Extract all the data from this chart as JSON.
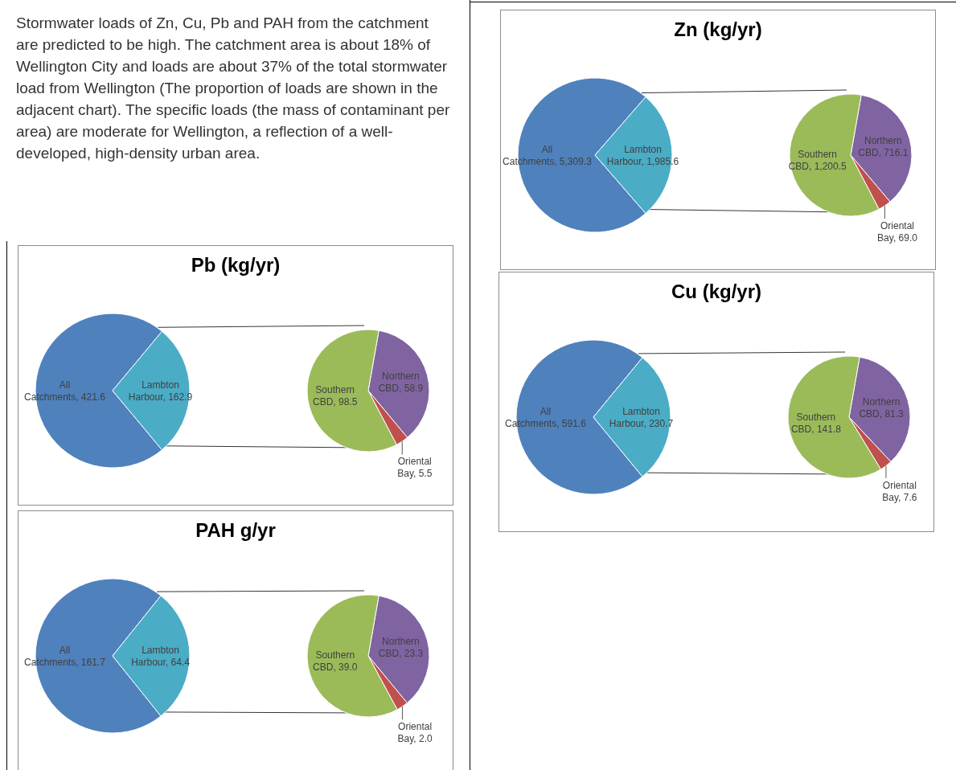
{
  "chart_data": [
    {
      "type": "other",
      "annotations": [
        "Stormwater loads of Zn, Cu, Pb and PAH from the catchment are predicted to be high. The catchment area is about 18% of Wellington City and loads are about 37% of the total stormwater load from Wellington (The proportion of loads are shown in the adjacent chart). The specific loads (the mass of contaminant per area) are moderate for Wellington, a reflection of a well-developed, high-density urban area."
      ]
    },
    {
      "type": "pie",
      "title": "Zn (kg/yr)",
      "categories": [
        "All Catchments",
        "Lambton Harbour"
      ],
      "values": [
        5309.3,
        1985.6
      ],
      "value_labels": [
        "5,309.3",
        "1,985.6"
      ],
      "colors": [
        "#4f81bd",
        "#4bacc6"
      ]
    },
    {
      "type": "pie",
      "categories": [
        "Northern CBD",
        "Oriental Bay",
        "Southern CBD"
      ],
      "values": [
        716.1,
        69.0,
        1200.5
      ],
      "value_labels": [
        "716.1",
        "69.0",
        "1,200.5"
      ],
      "colors": [
        "#8064a2",
        "#c0504d",
        "#9bbb59"
      ]
    },
    {
      "type": "pie",
      "title": "Pb (kg/yr)",
      "categories": [
        "All Catchments",
        "Lambton Harbour"
      ],
      "values": [
        421.6,
        162.9
      ],
      "value_labels": [
        "421.6",
        "162.9"
      ],
      "colors": [
        "#4f81bd",
        "#4bacc6"
      ]
    },
    {
      "type": "pie",
      "categories": [
        "Northern CBD",
        "Oriental Bay",
        "Southern CBD"
      ],
      "values": [
        58.9,
        5.5,
        98.5
      ],
      "value_labels": [
        "58.9",
        "5.5",
        "98.5"
      ],
      "colors": [
        "#8064a2",
        "#c0504d",
        "#9bbb59"
      ]
    },
    {
      "type": "pie",
      "title": "Cu (kg/yr)",
      "categories": [
        "All Catchments",
        "Lambton Harbour"
      ],
      "values": [
        591.6,
        230.7
      ],
      "value_labels": [
        "591.6",
        "230.7"
      ],
      "colors": [
        "#4f81bd",
        "#4bacc6"
      ]
    },
    {
      "type": "pie",
      "categories": [
        "Northern CBD",
        "Oriental Bay",
        "Southern CBD"
      ],
      "values": [
        81.3,
        7.6,
        141.8
      ],
      "value_labels": [
        "81.3",
        "7.6",
        "141.8"
      ],
      "colors": [
        "#8064a2",
        "#c0504d",
        "#9bbb59"
      ]
    },
    {
      "type": "pie",
      "title": "PAH g/yr",
      "categories": [
        "All Catchments",
        "Lambton Harbour"
      ],
      "values": [
        161.7,
        64.4
      ],
      "value_labels": [
        "161.7",
        "64.4"
      ],
      "colors": [
        "#4f81bd",
        "#4bacc6"
      ]
    },
    {
      "type": "pie",
      "categories": [
        "Northern CBD",
        "Oriental Bay",
        "Southern CBD"
      ],
      "values": [
        23.3,
        2.0,
        39.0
      ],
      "value_labels": [
        "23.3",
        "2.0",
        "39.0"
      ],
      "colors": [
        "#8064a2",
        "#c0504d",
        "#9bbb59"
      ]
    }
  ]
}
